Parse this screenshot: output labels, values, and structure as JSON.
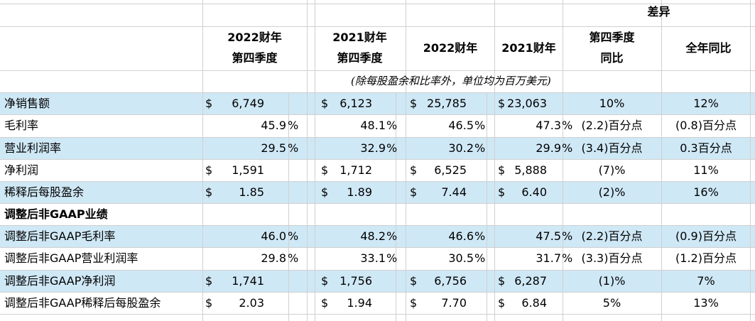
{
  "header": {
    "diff_group": "差异",
    "columns": [
      {
        "line1": "2022财年",
        "line2": "第四季度"
      },
      {
        "line1": "2021财年",
        "line2": "第四季度"
      },
      {
        "line1": "2022财年",
        "line2": ""
      },
      {
        "line1": "2021财年",
        "line2": ""
      },
      {
        "line1": "第四季度",
        "line2": "同比"
      },
      {
        "line1": "全年同比",
        "line2": ""
      }
    ],
    "note": "(除每股盈余和比率外，单位均为百万美元)"
  },
  "rows": [
    {
      "label": "净销售额",
      "cur": [
        "$",
        "$",
        "$",
        "$"
      ],
      "vals": [
        "6,749",
        "6,123",
        "25,785",
        "23,063"
      ],
      "pct": [
        "",
        "",
        "",
        ""
      ],
      "yoy_q": "10%",
      "yoy_y": "12%"
    },
    {
      "label": "毛利率",
      "cur": [
        "",
        "",
        "",
        ""
      ],
      "vals": [
        "45.9",
        "48.1",
        "46.5",
        "47.3"
      ],
      "pct": [
        "%",
        "%",
        "%",
        "%"
      ],
      "yoy_q": "(2.2)百分点",
      "yoy_y": "(0.8)百分点"
    },
    {
      "label": "营业利润率",
      "cur": [
        "",
        "",
        "",
        ""
      ],
      "vals": [
        "29.5",
        "32.9",
        "30.2",
        "29.9"
      ],
      "pct": [
        "%",
        "%",
        "%",
        "%"
      ],
      "yoy_q": "(3.4)百分点",
      "yoy_y": "0.3百分点"
    },
    {
      "label": "净利润",
      "cur": [
        "$",
        "$",
        "$",
        "$"
      ],
      "vals": [
        "1,591",
        "1,712",
        "6,525",
        "5,888"
      ],
      "pct": [
        "",
        "",
        "",
        ""
      ],
      "yoy_q": "(7)%",
      "yoy_y": "11%"
    },
    {
      "label": "稀释后每股盈余",
      "cur": [
        "$",
        "$",
        "$",
        "$"
      ],
      "vals": [
        "1.85",
        "1.89",
        "7.44",
        "6.40"
      ],
      "pct": [
        "",
        "",
        "",
        ""
      ],
      "yoy_q": "(2)%",
      "yoy_y": "16%"
    },
    {
      "label": "调整后非GAAP业绩",
      "section": true
    },
    {
      "label": "调整后非GAAP毛利率",
      "cur": [
        "",
        "",
        "",
        ""
      ],
      "vals": [
        "46.0",
        "48.2",
        "46.6",
        "47.5"
      ],
      "pct": [
        "%",
        "%",
        "%",
        "%"
      ],
      "yoy_q": "(2.2)百分点",
      "yoy_y": "(0.9)百分点"
    },
    {
      "label": "调整后非GAAP营业利润率",
      "cur": [
        "",
        "",
        "",
        ""
      ],
      "vals": [
        "29.8",
        "33.1",
        "30.5",
        "31.7"
      ],
      "pct": [
        "%",
        "%",
        "%",
        "%"
      ],
      "yoy_q": "(3.3)百分点",
      "yoy_y": "(1.2)百分点"
    },
    {
      "label": "调整后非GAAP净利润",
      "cur": [
        "$",
        "$",
        "$",
        "$"
      ],
      "vals": [
        "1,741",
        "1,756",
        "6,756",
        "6,287"
      ],
      "pct": [
        "",
        "",
        "",
        ""
      ],
      "yoy_q": "(1)%",
      "yoy_y": "7%"
    },
    {
      "label": "调整后非GAAP稀释后每股盈余",
      "cur": [
        "$",
        "$",
        "$",
        "$"
      ],
      "vals": [
        "2.03",
        "1.94",
        "7.70",
        "6.84"
      ],
      "pct": [
        "",
        "",
        "",
        ""
      ],
      "yoy_q": "5%",
      "yoy_y": "13%"
    }
  ]
}
